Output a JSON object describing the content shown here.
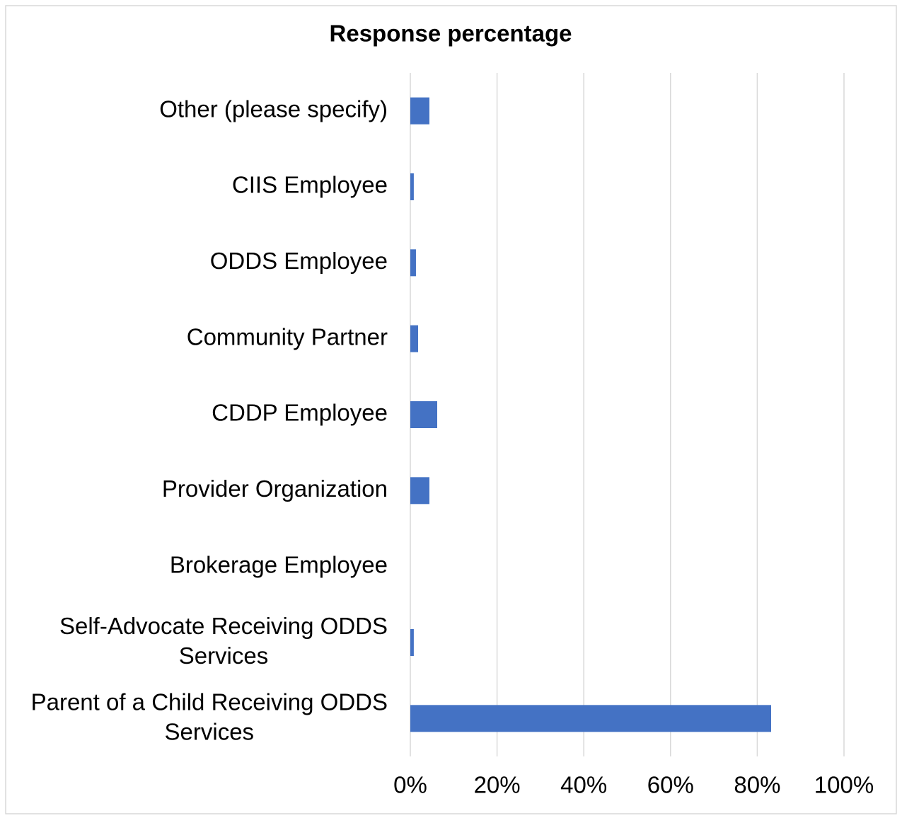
{
  "chart_data": {
    "type": "barh",
    "title": "Response percentage",
    "categories": [
      "Other (please specify)",
      "CIIS Employee",
      "ODDS Employee",
      "Community Partner",
      "CDDP Employee",
      "Provider Organization",
      "Brokerage Employee",
      "Self-Advocate Receiving ODDS Services",
      "Parent of a Child Receiving ODDS Services"
    ],
    "values": [
      4.4,
      0.8,
      1.3,
      1.8,
      6.2,
      4.4,
      0,
      0.8,
      83.2
    ],
    "color": "#4472c4",
    "xlim": [
      0,
      100
    ],
    "xticks": [
      {
        "value": 0,
        "label": "0%"
      },
      {
        "value": 20,
        "label": "20%"
      },
      {
        "value": 40,
        "label": "40%"
      },
      {
        "value": 60,
        "label": "60%"
      },
      {
        "value": 80,
        "label": "80%"
      },
      {
        "value": 100,
        "label": "100%"
      }
    ],
    "grid": true
  }
}
